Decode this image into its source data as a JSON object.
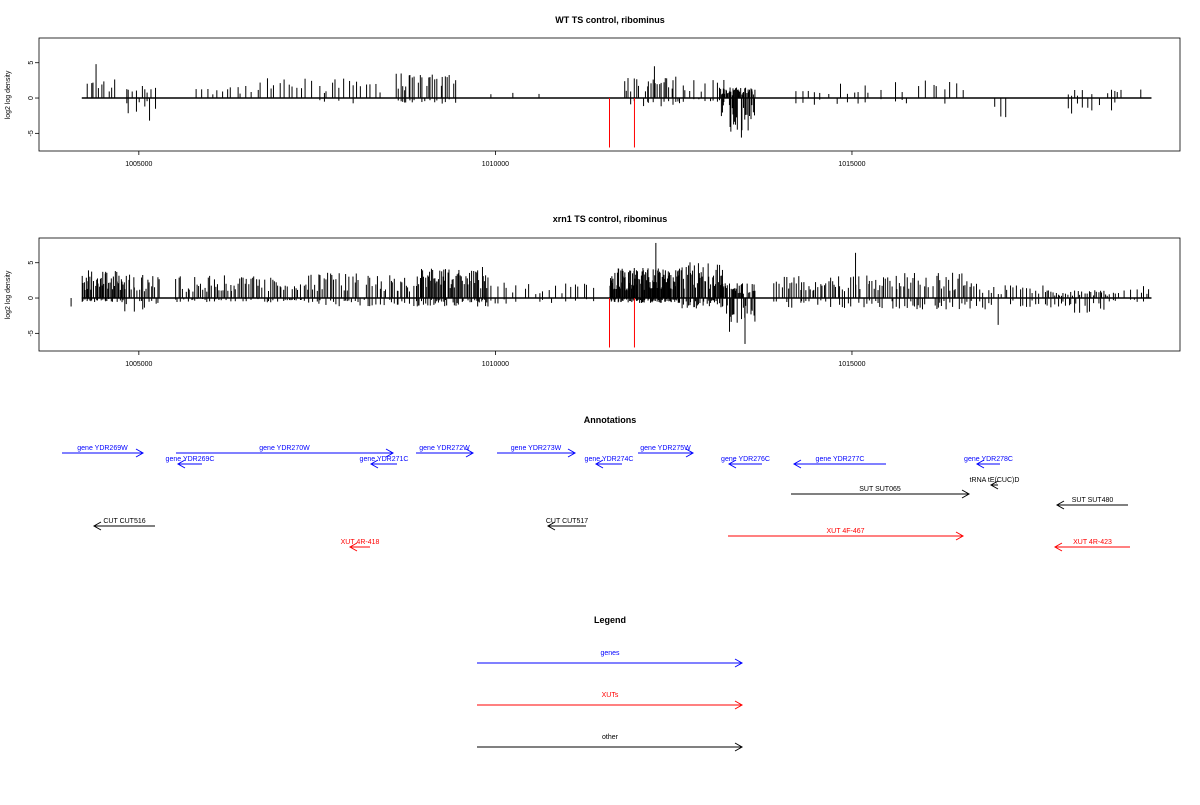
{
  "colors": {
    "genes": "#0000ff",
    "xuts": "#ff0000",
    "other": "#000000",
    "track": "#000000",
    "marker": "#ff0000"
  },
  "chart_data": [
    {
      "type": "bar",
      "id": "wt",
      "title": "WT TS control, ribominus",
      "ylabel": "log2 log density",
      "xlim": [
        1003600,
        1019600
      ],
      "ylim": [
        -7.5,
        8.5
      ],
      "xticks": [
        1005000,
        1010000,
        1015000
      ],
      "xtick_labels": [
        "1005000",
        "1010000",
        "1015000"
      ],
      "yticks": [
        -5,
        0,
        5
      ],
      "ytick_labels": [
        "-5",
        "0",
        "5"
      ],
      "markers": [
        1011600,
        1011950
      ],
      "marker_value": -7,
      "baseline": [
        1004200,
        1019200
      ],
      "clusters": [
        {
          "start": 1004250,
          "end": 1004700,
          "n": 9,
          "pos": 2.8,
          "neg": 0
        },
        {
          "start": 1004800,
          "end": 1005250,
          "n": 10,
          "pos": 2.2,
          "neg": -2.2
        },
        {
          "start": 1005700,
          "end": 1006700,
          "n": 14,
          "pos": 2.0,
          "neg": 0
        },
        {
          "start": 1006700,
          "end": 1007450,
          "n": 12,
          "pos": 2.8,
          "neg": 0
        },
        {
          "start": 1007500,
          "end": 1008400,
          "n": 15,
          "pos": 2.8,
          "neg": -1.0
        },
        {
          "start": 1008600,
          "end": 1009450,
          "n": 30,
          "pos": 3.5,
          "neg": -0.8
        },
        {
          "start": 1009800,
          "end": 1010900,
          "n": 5,
          "pos": 1.3,
          "neg": 0
        },
        {
          "start": 1011800,
          "end": 1012600,
          "n": 28,
          "pos": 3.2,
          "neg": -1.2
        },
        {
          "start": 1012600,
          "end": 1013250,
          "n": 12,
          "pos": 3.0,
          "neg": -0.8
        },
        {
          "start": 1013150,
          "end": 1013650,
          "n": 40,
          "pos": 1.5,
          "neg": -4.8
        },
        {
          "start": 1014200,
          "end": 1015300,
          "n": 14,
          "pos": 2.2,
          "neg": -1.0
        },
        {
          "start": 1015400,
          "end": 1016600,
          "n": 14,
          "pos": 2.8,
          "neg": -0.8
        },
        {
          "start": 1017000,
          "end": 1017200,
          "n": 4,
          "pos": 0,
          "neg": -2.8
        },
        {
          "start": 1018000,
          "end": 1018800,
          "n": 16,
          "pos": 1.2,
          "neg": -2.6
        }
      ],
      "spikes": [
        {
          "x": 1004400,
          "v": 4.8
        },
        {
          "x": 1005150,
          "v": -3.2
        },
        {
          "x": 1012230,
          "v": 4.5
        },
        {
          "x": 1013450,
          "v": -5.6
        },
        {
          "x": 1019050,
          "v": 1.2
        }
      ]
    },
    {
      "type": "bar",
      "id": "xrn1",
      "title": "xrn1 TS control, ribominus",
      "ylabel": "log2 log density",
      "xlim": [
        1003600,
        1019600
      ],
      "ylim": [
        -7.5,
        8.5
      ],
      "xticks": [
        1005000,
        1010000,
        1015000
      ],
      "xtick_labels": [
        "1005000",
        "1010000",
        "1015000"
      ],
      "yticks": [
        -5,
        0,
        5
      ],
      "ytick_labels": [
        "-5",
        "0",
        "5"
      ],
      "markers": [
        1011600,
        1011950
      ],
      "marker_value": -7,
      "baseline": [
        1004200,
        1019200
      ],
      "clusters": [
        {
          "start": 1004200,
          "end": 1004800,
          "n": 45,
          "pos": 4.0,
          "neg": -0.6
        },
        {
          "start": 1004800,
          "end": 1005300,
          "n": 22,
          "pos": 3.4,
          "neg": -2.0
        },
        {
          "start": 1005500,
          "end": 1007300,
          "n": 70,
          "pos": 3.3,
          "neg": -0.6
        },
        {
          "start": 1007300,
          "end": 1008900,
          "n": 60,
          "pos": 3.6,
          "neg": -1.2
        },
        {
          "start": 1008900,
          "end": 1009900,
          "n": 70,
          "pos": 4.4,
          "neg": -1.2
        },
        {
          "start": 1009900,
          "end": 1011400,
          "n": 24,
          "pos": 2.2,
          "neg": -0.8
        },
        {
          "start": 1011600,
          "end": 1012600,
          "n": 110,
          "pos": 4.3,
          "neg": -0.7
        },
        {
          "start": 1012600,
          "end": 1013200,
          "n": 45,
          "pos": 5.2,
          "neg": -1.5
        },
        {
          "start": 1013150,
          "end": 1013650,
          "n": 40,
          "pos": 2.2,
          "neg": -5.0
        },
        {
          "start": 1013900,
          "end": 1015300,
          "n": 50,
          "pos": 3.2,
          "neg": -1.4
        },
        {
          "start": 1015300,
          "end": 1016800,
          "n": 55,
          "pos": 3.6,
          "neg": -1.6
        },
        {
          "start": 1016800,
          "end": 1017700,
          "n": 20,
          "pos": 1.8,
          "neg": -1.6
        },
        {
          "start": 1017700,
          "end": 1018600,
          "n": 35,
          "pos": 1.2,
          "neg": -2.2
        },
        {
          "start": 1018600,
          "end": 1019200,
          "n": 14,
          "pos": 1.8,
          "neg": -0.8
        }
      ],
      "spikes": [
        {
          "x": 1004050,
          "v": -1.2
        },
        {
          "x": 1012250,
          "v": 7.8
        },
        {
          "x": 1013500,
          "v": -6.5
        },
        {
          "x": 1015050,
          "v": 6.4
        },
        {
          "x": 1017050,
          "v": -3.8
        }
      ]
    }
  ],
  "annotations": {
    "title": "Annotations",
    "items": [
      {
        "label": "gene YDR269W",
        "category": "genes",
        "tail": 62,
        "head": 143,
        "row": 0
      },
      {
        "label": "gene YDR270W",
        "category": "genes",
        "tail": 176,
        "head": 393,
        "row": 0
      },
      {
        "label": "gene YDR272W",
        "category": "genes",
        "tail": 416,
        "head": 473,
        "row": 0
      },
      {
        "label": "gene YDR273W",
        "category": "genes",
        "tail": 497,
        "head": 575,
        "row": 0
      },
      {
        "label": "gene YDR275W",
        "category": "genes",
        "tail": 638,
        "head": 693,
        "row": 0
      },
      {
        "label": "gene YDR269C",
        "category": "genes",
        "tail": 202,
        "head": 178,
        "row": 1
      },
      {
        "label": "gene YDR271C",
        "category": "genes",
        "tail": 397,
        "head": 371,
        "row": 1
      },
      {
        "label": "gene YDR274C",
        "category": "genes",
        "tail": 622,
        "head": 596,
        "row": 1
      },
      {
        "label": "gene YDR276C",
        "category": "genes",
        "tail": 762,
        "head": 729,
        "row": 1
      },
      {
        "label": "gene YDR277C",
        "category": "genes",
        "tail": 886,
        "head": 794,
        "row": 1
      },
      {
        "label": "gene YDR278C",
        "category": "genes",
        "tail": 1000,
        "head": 977,
        "row": 1
      },
      {
        "label": "tRNA tE(CUC)D",
        "category": "other",
        "tail": 998,
        "head": 991,
        "row": 2
      },
      {
        "label": "SUT SUT065",
        "category": "other",
        "tail": 791,
        "head": 969,
        "row": 3
      },
      {
        "label": "SUT SUT480",
        "category": "other",
        "tail": 1128,
        "head": 1057,
        "row": 4
      },
      {
        "label": "CUT CUT516",
        "category": "other",
        "tail": 155,
        "head": 94,
        "row": 5
      },
      {
        "label": "CUT CUT517",
        "category": "other",
        "tail": 586,
        "head": 548,
        "row": 5
      },
      {
        "label": "XUT 4F-467",
        "category": "xuts",
        "tail": 728,
        "head": 963,
        "row": 6
      },
      {
        "label": "XUT 4R-418",
        "category": "xuts",
        "tail": 370,
        "head": 350,
        "row": 7
      },
      {
        "label": "XUT 4R-423",
        "category": "xuts",
        "tail": 1130,
        "head": 1055,
        "row": 7
      }
    ]
  },
  "legend": {
    "title": "Legend",
    "items": [
      {
        "label": "genes",
        "category": "genes"
      },
      {
        "label": "XUTs",
        "category": "xuts"
      },
      {
        "label": "other",
        "category": "other"
      }
    ]
  }
}
